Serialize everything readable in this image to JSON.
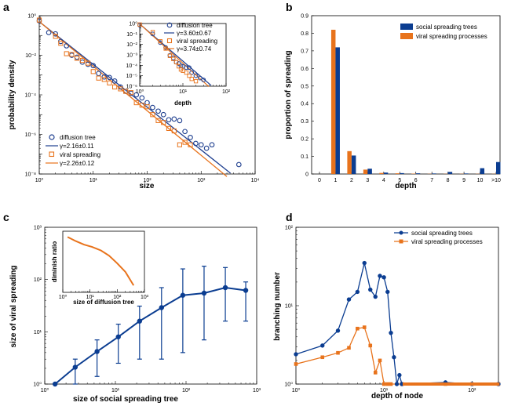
{
  "colors": {
    "blue": "#1f3f8f",
    "orange": "#e8731c",
    "darkblue": "#0b3d91"
  },
  "chart_data": [
    {
      "panel": "a",
      "type": "scatter",
      "xlabel": "size",
      "ylabel": "probability density",
      "xscale": "log",
      "yscale": "log",
      "xlim": [
        1,
        10000
      ],
      "ylim": [
        1e-08,
        1
      ],
      "xticks": [
        1,
        10,
        100,
        1000,
        10000
      ],
      "xtick_labels": [
        "10⁰",
        "10¹",
        "10²",
        "10³",
        "10⁴"
      ],
      "yticks": [
        1e-08,
        1e-06,
        0.0001,
        0.01,
        1
      ],
      "ytick_labels": [
        "10⁻⁸",
        "10⁻⁶",
        "10⁻⁴",
        "10⁻²",
        "10⁰"
      ],
      "series": [
        {
          "name": "diffusion tree",
          "marker": "circle",
          "color": "blue",
          "x": [
            1,
            1.5,
            2,
            2.5,
            3.2,
            4,
            5,
            6.3,
            8,
            10,
            12.6,
            16,
            20,
            25,
            32,
            40,
            50,
            63,
            80,
            100,
            126,
            160,
            200,
            251,
            316,
            400,
            501,
            631,
            794,
            1000,
            1259,
            1585,
            5000
          ],
          "y": [
            0.55,
            0.14,
            0.12,
            0.05,
            0.03,
            0.01,
            0.008,
            0.0045,
            0.0035,
            0.003,
            0.0012,
            0.0008,
            0.00075,
            0.0005,
            0.00025,
            0.00015,
            0.00012,
            0.0001,
            7e-05,
            4e-05,
            2.3e-05,
            1.5e-05,
            1e-05,
            5.5e-06,
            6e-06,
            5e-06,
            1.4e-06,
            7e-07,
            3.5e-07,
            3e-07,
            2e-07,
            3e-07,
            3e-08
          ]
        },
        {
          "name": "viral spreading",
          "marker": "square",
          "color": "orange",
          "x": [
            1,
            2,
            2.5,
            3.2,
            4,
            5,
            6.3,
            8,
            10,
            12.6,
            16,
            20,
            25,
            32,
            40,
            50,
            63,
            80,
            100,
            126,
            160,
            200,
            251,
            316,
            400,
            501,
            631
          ],
          "y": [
            0.6,
            0.09,
            0.04,
            0.012,
            0.011,
            0.007,
            0.0055,
            0.004,
            0.0015,
            0.0007,
            0.0006,
            0.0004,
            0.00025,
            0.0002,
            0.00015,
            0.00013,
            4e-05,
            3e-05,
            2.5e-05,
            1e-05,
            5e-06,
            4e-06,
            2e-06,
            1.5e-06,
            3e-07,
            4e-07,
            3e-07
          ]
        },
        {
          "name": "γ=2.16±0.11",
          "line": true,
          "color": "blue",
          "x": [
            1,
            3500
          ],
          "y": [
            0.5,
            1.1e-08
          ]
        },
        {
          "name": "γ=2.26±0.12",
          "line": true,
          "color": "orange",
          "x": [
            1,
            3000
          ],
          "y": [
            0.5,
            7.4e-09
          ]
        }
      ],
      "legend": [
        "diffusion tree",
        "γ=2.16±0.11",
        "viral spreading",
        "γ=2.26±0.12"
      ],
      "legend_position": "bottom-left",
      "inset": {
        "xlabel": "depth",
        "xscale": "log",
        "yscale": "log",
        "xlim": [
          1,
          100
        ],
        "ylim": [
          1e-06,
          1
        ],
        "xtick_labels": [
          "10⁰",
          "10¹",
          "10²"
        ],
        "ytick_labels": [
          "10⁻⁶",
          "10⁻⁵",
          "10⁻⁴",
          "10⁻³",
          "10⁻²",
          "10⁻¹",
          "10⁰"
        ],
        "series": [
          {
            "name": "diffusion tree",
            "marker": "circle",
            "color": "blue",
            "x": [
              1,
              2,
              3,
              4,
              5,
              6,
              7,
              8,
              9,
              10,
              12,
              14,
              16,
              20,
              25,
              30
            ],
            "y": [
              0.7,
              0.1,
              0.015,
              0.005,
              0.0009,
              0.0005,
              0.0002,
              0.00015,
              9e-05,
              8e-05,
              6e-05,
              6e-05,
              2e-05,
              1e-05,
              6e-06,
              4e-06
            ]
          },
          {
            "name": "viral spreading",
            "marker": "square",
            "color": "orange",
            "x": [
              1,
              2,
              3,
              4,
              5,
              6,
              7,
              8,
              9,
              10,
              12,
              14,
              16,
              20
            ],
            "y": [
              0.8,
              0.15,
              0.02,
              0.004,
              0.0008,
              0.0004,
              0.0002,
              8e-05,
              4e-05,
              3e-05,
              2e-05,
              1e-05,
              5e-06,
              3e-06
            ]
          },
          {
            "name": "γ=3.60±0.67",
            "line": true,
            "color": "blue",
            "x": [
              1,
              45
            ],
            "y": [
              0.9,
              1.2e-06
            ]
          },
          {
            "name": "γ=3.74±0.74",
            "line": true,
            "color": "orange",
            "x": [
              1,
              40
            ],
            "y": [
              0.9,
              9e-07
            ]
          }
        ],
        "legend": [
          "diffusion tree",
          "γ=3.60±0.67",
          "viral spreading",
          "γ=3.74±0.74"
        ]
      }
    },
    {
      "panel": "b",
      "type": "bar",
      "xlabel": "depth",
      "ylabel": "proportion of spreading",
      "categories": [
        "1",
        "2",
        "3",
        "4",
        "5",
        "6",
        "7",
        "8",
        "9",
        "10",
        ">10"
      ],
      "xtick_labels": [
        "0",
        "1",
        "2",
        "3",
        "4",
        "5",
        "6",
        "7",
        "8",
        "9",
        "10",
        ">10"
      ],
      "ylim": [
        0,
        0.9
      ],
      "yticks": [
        0,
        0.1,
        0.2,
        0.3,
        0.4,
        0.5,
        0.6,
        0.7,
        0.8,
        0.9
      ],
      "series": [
        {
          "name": "social spreading trees",
          "color": "darkblue",
          "values": [
            0.72,
            0.105,
            0.03,
            0.008,
            0.005,
            0.004,
            0.003,
            0.012,
            0.003,
            0.033,
            0.068
          ]
        },
        {
          "name": "viral spreading processes",
          "color": "orange",
          "values": [
            0.82,
            0.13,
            0.025,
            0.006,
            0.004,
            0.002,
            0.001,
            0.001,
            0.001,
            0.001,
            0.001
          ]
        }
      ],
      "legend": [
        "social spreading trees",
        "viral spreading processes"
      ],
      "legend_position": "top-right"
    },
    {
      "panel": "c",
      "type": "line",
      "xlabel": "size of social spreading tree",
      "ylabel": "size of viral spreading",
      "xscale": "log",
      "yscale": "log",
      "xlim": [
        1,
        1000
      ],
      "ylim": [
        1,
        1000
      ],
      "xtick_labels": [
        "10⁰",
        "10¹",
        "10²",
        "10³"
      ],
      "ytick_labels": [
        "10⁰",
        "10¹",
        "10²",
        "10³"
      ],
      "series": [
        {
          "name": "size of viral spreading",
          "color": "darkblue",
          "x": [
            1.4,
            2.7,
            5.5,
            11,
            22,
            45,
            90,
            180,
            360,
            700
          ],
          "y": [
            1,
            2.1,
            4.2,
            8,
            16,
            29,
            50,
            55,
            70,
            62
          ],
          "err_low": [
            1,
            1,
            1.4,
            2.5,
            3,
            3,
            4,
            7,
            16,
            16
          ],
          "err_high": [
            1,
            3,
            7,
            14,
            31,
            70,
            160,
            180,
            170,
            90
          ]
        }
      ],
      "inset": {
        "xlabel": "size of diffusion tree",
        "ylabel": "diminish ratio",
        "xscale": "log",
        "xtick_labels": [
          "10⁰",
          "10¹",
          "10²",
          "10³"
        ],
        "series": [
          {
            "name": "diminish ratio",
            "color": "orange",
            "x": [
              1.5,
              3,
              6,
              12,
              25,
              50,
              100,
              200,
              400
            ],
            "y": [
              0.95,
              0.88,
              0.82,
              0.78,
              0.72,
              0.63,
              0.5,
              0.35,
              0.12
            ]
          }
        ]
      }
    },
    {
      "panel": "d",
      "type": "line",
      "xlabel": "depth of node",
      "ylabel": "branching number",
      "xscale": "log",
      "yscale": "log",
      "xlim": [
        1,
        200
      ],
      "ylim": [
        1,
        100
      ],
      "xtick_labels": [
        "10⁰",
        "10¹",
        "10²"
      ],
      "ytick_labels": [
        "10⁰",
        "10¹",
        "10²"
      ],
      "series": [
        {
          "name": "social spreading trees",
          "color": "darkblue",
          "marker": "circle",
          "x": [
            1,
            2,
            3,
            4,
            5,
            6,
            7,
            8,
            9,
            10,
            11,
            12,
            13,
            14,
            15,
            16,
            50,
            100,
            200
          ],
          "y": [
            2.4,
            3.1,
            4.8,
            12,
            15,
            35,
            16,
            13,
            24,
            23,
            15,
            4.5,
            2.2,
            1,
            1.3,
            1,
            1.05,
            1,
            1
          ]
        },
        {
          "name": "viral spreading processes",
          "color": "orange",
          "marker": "square",
          "x": [
            1,
            2,
            3,
            4,
            5,
            6,
            7,
            8,
            9,
            10,
            11,
            12,
            16,
            50,
            100,
            200
          ],
          "y": [
            1.8,
            2.2,
            2.5,
            2.9,
            5.1,
            5.3,
            3.1,
            1.4,
            2.0,
            1,
            1,
            1,
            1,
            1,
            1,
            1
          ]
        }
      ],
      "legend": [
        "social spreading trees",
        "viral spreading processes"
      ],
      "legend_position": "top-right"
    }
  ]
}
